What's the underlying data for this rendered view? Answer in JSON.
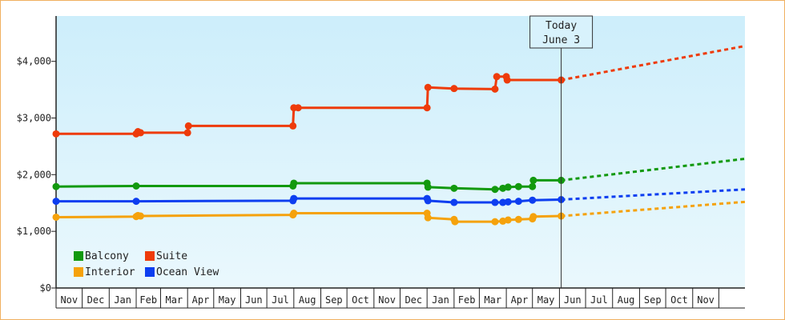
{
  "chart_data": {
    "type": "line",
    "today_marker": {
      "line1": "Today",
      "line2": "June 3",
      "x": "2024-06-03"
    },
    "y_ticks": [
      {
        "value": 0,
        "label": "$0"
      },
      {
        "value": 1000,
        "label": "$1,000"
      },
      {
        "value": 2000,
        "label": "$2,000"
      },
      {
        "value": 3000,
        "label": "$3,000"
      },
      {
        "value": 4000,
        "label": "$4,000"
      }
    ],
    "ylim": [
      0,
      4800
    ],
    "x_ticks": [
      {
        "date": "2022-11-01",
        "label": "Nov"
      },
      {
        "date": "2022-12-01",
        "label": "Dec"
      },
      {
        "date": "2023-01-01",
        "label": "Jan"
      },
      {
        "date": "2023-02-01",
        "label": "Feb"
      },
      {
        "date": "2023-03-01",
        "label": "Mar"
      },
      {
        "date": "2023-04-01",
        "label": "Apr"
      },
      {
        "date": "2023-05-01",
        "label": "May"
      },
      {
        "date": "2023-06-01",
        "label": "Jun"
      },
      {
        "date": "2023-07-01",
        "label": "Jul"
      },
      {
        "date": "2023-08-01",
        "label": "Aug"
      },
      {
        "date": "2023-09-01",
        "label": "Sep"
      },
      {
        "date": "2023-10-01",
        "label": "Oct"
      },
      {
        "date": "2023-11-01",
        "label": "Nov"
      },
      {
        "date": "2023-12-01",
        "label": "Dec"
      },
      {
        "date": "2024-01-01",
        "label": "Jan"
      },
      {
        "date": "2024-02-01",
        "label": "Feb"
      },
      {
        "date": "2024-03-01",
        "label": "Mar"
      },
      {
        "date": "2024-04-01",
        "label": "Apr"
      },
      {
        "date": "2024-05-01",
        "label": "May"
      },
      {
        "date": "2024-06-01",
        "label": "Jun"
      },
      {
        "date": "2024-07-01",
        "label": "Jul"
      },
      {
        "date": "2024-08-01",
        "label": "Aug"
      },
      {
        "date": "2024-09-01",
        "label": "Sep"
      },
      {
        "date": "2024-10-01",
        "label": "Oct"
      },
      {
        "date": "2024-11-01",
        "label": "Nov"
      },
      {
        "date": "2024-12-01",
        "label": ""
      }
    ],
    "xlim": [
      "2022-11-01",
      "2024-12-31"
    ],
    "colors": {
      "plot_bg_top": "#cdeefb",
      "plot_bg_bottom": "#eaf8fd",
      "border": "#f0b060",
      "today_box": "#d8f2fc"
    },
    "series": [
      {
        "name": "Suite",
        "color": "#ee3b0a",
        "points": [
          [
            "2022-11-01",
            2720
          ],
          [
            "2023-02-01",
            2720
          ],
          [
            "2023-02-03",
            2760
          ],
          [
            "2023-02-06",
            2740
          ],
          [
            "2023-04-01",
            2740
          ],
          [
            "2023-04-02",
            2860
          ],
          [
            "2023-07-31",
            2860
          ],
          [
            "2023-08-01",
            3180
          ],
          [
            "2023-08-06",
            3180
          ],
          [
            "2024-01-01",
            3180
          ],
          [
            "2024-01-02",
            3540
          ],
          [
            "2024-02-01",
            3520
          ],
          [
            "2024-03-19",
            3510
          ],
          [
            "2024-03-21",
            3730
          ],
          [
            "2024-04-01",
            3730
          ],
          [
            "2024-04-02",
            3670
          ],
          [
            "2024-06-03",
            3670
          ]
        ],
        "forecast": [
          [
            "2024-06-03",
            3670
          ],
          [
            "2024-12-31",
            4270
          ]
        ]
      },
      {
        "name": "Balcony",
        "color": "#12990e",
        "points": [
          [
            "2022-11-01",
            1790
          ],
          [
            "2023-02-01",
            1800
          ],
          [
            "2023-07-31",
            1800
          ],
          [
            "2023-08-01",
            1850
          ],
          [
            "2024-01-01",
            1850
          ],
          [
            "2024-01-02",
            1780
          ],
          [
            "2024-02-01",
            1760
          ],
          [
            "2024-03-19",
            1740
          ],
          [
            "2024-03-28",
            1760
          ],
          [
            "2024-04-03",
            1780
          ],
          [
            "2024-04-15",
            1790
          ],
          [
            "2024-05-01",
            1790
          ],
          [
            "2024-05-02",
            1900
          ],
          [
            "2024-06-03",
            1900
          ]
        ],
        "forecast": [
          [
            "2024-06-03",
            1900
          ],
          [
            "2024-12-31",
            2280
          ]
        ]
      },
      {
        "name": "Ocean View",
        "color": "#0d3ef0",
        "points": [
          [
            "2022-11-01",
            1530
          ],
          [
            "2023-02-01",
            1530
          ],
          [
            "2023-07-31",
            1540
          ],
          [
            "2023-08-01",
            1580
          ],
          [
            "2024-01-01",
            1580
          ],
          [
            "2024-01-02",
            1540
          ],
          [
            "2024-02-01",
            1510
          ],
          [
            "2024-03-19",
            1510
          ],
          [
            "2024-03-28",
            1510
          ],
          [
            "2024-04-03",
            1520
          ],
          [
            "2024-04-15",
            1530
          ],
          [
            "2024-05-01",
            1550
          ],
          [
            "2024-06-03",
            1560
          ]
        ],
        "forecast": [
          [
            "2024-06-03",
            1560
          ],
          [
            "2024-12-31",
            1740
          ]
        ]
      },
      {
        "name": "Interior",
        "color": "#f5a20c",
        "points": [
          [
            "2022-11-01",
            1250
          ],
          [
            "2023-02-01",
            1260
          ],
          [
            "2023-02-03",
            1280
          ],
          [
            "2023-02-06",
            1270
          ],
          [
            "2023-07-31",
            1290
          ],
          [
            "2023-08-01",
            1320
          ],
          [
            "2024-01-01",
            1320
          ],
          [
            "2024-01-02",
            1240
          ],
          [
            "2024-02-01",
            1210
          ],
          [
            "2024-02-02",
            1170
          ],
          [
            "2024-03-19",
            1170
          ],
          [
            "2024-03-28",
            1180
          ],
          [
            "2024-04-03",
            1200
          ],
          [
            "2024-04-15",
            1210
          ],
          [
            "2024-05-01",
            1220
          ],
          [
            "2024-05-02",
            1260
          ],
          [
            "2024-06-03",
            1270
          ]
        ],
        "forecast": [
          [
            "2024-06-03",
            1270
          ],
          [
            "2024-12-31",
            1520
          ]
        ]
      }
    ],
    "legend": [
      {
        "name": "Balcony",
        "color": "#12990e"
      },
      {
        "name": "Suite",
        "color": "#ee3b0a"
      },
      {
        "name": "Interior",
        "color": "#f5a20c"
      },
      {
        "name": "Ocean View",
        "color": "#0d3ef0"
      }
    ],
    "legend_position": "bottom-left",
    "grid": false
  }
}
